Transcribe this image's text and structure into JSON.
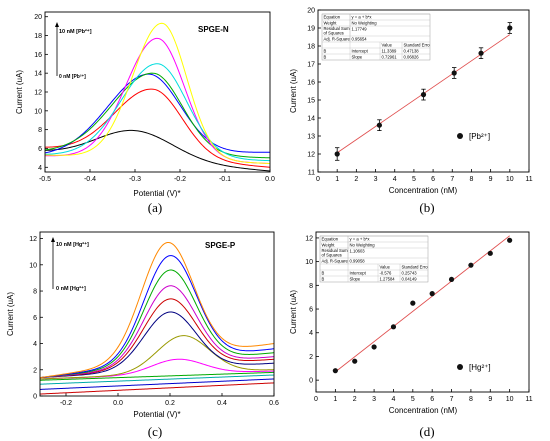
{
  "panels": [
    {
      "letter": "(a)",
      "xlabel": "Potential (V)*",
      "ylabel": "Current (uA)",
      "inner_label": "SPGE-N",
      "conc_top": "10 nM [Pb²⁺]",
      "conc_bottom": "0 nM [Pb²⁺]"
    },
    {
      "letter": "(b)",
      "xlabel": "Concentration (nM)",
      "ylabel": "Current (uA)",
      "legend": "[Pb²⁺]",
      "table": {
        "rows": [
          [
            "Equation",
            "y = a + b*x",
            "",
            ""
          ],
          [
            "Weight",
            "No Weighting",
            "",
            ""
          ],
          [
            "Residual Sum of Squares",
            "1.17749",
            "",
            ""
          ],
          [
            "Adj. R-Square",
            "0.95654",
            "",
            ""
          ],
          [
            "",
            "",
            "Value",
            "Standard Erro"
          ],
          [
            "B",
            "Intercept",
            "11.3389",
            "0.47138"
          ],
          [
            "B",
            "Slope",
            "0.72961",
            "0.06826"
          ]
        ]
      }
    },
    {
      "letter": "(c)",
      "xlabel": "Potential (V)*",
      "ylabel": "Current (uA)",
      "inner_label": "SPGE-P",
      "conc_top": "10 nM [Hg²⁺]",
      "conc_bottom": "0 nM [Hg²⁺]"
    },
    {
      "letter": "(d)",
      "xlabel": "Concentration (nM)",
      "ylabel": "Current (uA)",
      "legend": "[Hg²⁺]",
      "table": {
        "rows": [
          [
            "Equation",
            "y = a + b*x",
            "",
            ""
          ],
          [
            "Weight",
            "No Weighting",
            "",
            ""
          ],
          [
            "Residual Sum of Squares",
            "1.10603",
            "",
            ""
          ],
          [
            "Adj. R-Square",
            "0.99058",
            "",
            ""
          ],
          [
            "",
            "",
            "Value",
            "Standard Erro"
          ],
          [
            "B",
            "Intercept",
            "-0.576",
            "0.25743"
          ],
          [
            "B",
            "Slope",
            "1.27584",
            "0.04149"
          ]
        ]
      }
    }
  ],
  "chart_data": [
    {
      "type": "line",
      "xlim": [
        -0.5,
        0.0
      ],
      "ylim": [
        3.5,
        20.5
      ],
      "xticks": [
        -0.5,
        -0.4,
        -0.3,
        -0.2,
        -0.1,
        0.0
      ],
      "xtick_labels": [
        "-0.5",
        "-0.4",
        "-0.3",
        "-0.2",
        "-0.1",
        "0.0"
      ],
      "yticks": [
        4,
        6,
        8,
        10,
        12,
        14,
        16,
        18,
        20
      ],
      "ytick_labels": [
        "4",
        "6",
        "8",
        "10",
        "12",
        "14",
        "16",
        "18",
        "20"
      ],
      "grid": false,
      "series": [
        {
          "color": "#000000",
          "base0": 5.6,
          "base1": 3.6,
          "peak_x": -0.3,
          "peak_y": 7.9,
          "sl": 0.085,
          "sr": 0.085
        },
        {
          "color": "#ff0000",
          "base0": 6.0,
          "base1": 4.0,
          "peak_x": -0.26,
          "peak_y": 12.3,
          "sl": 0.085,
          "sr": 0.065
        },
        {
          "color": "#0000ff",
          "base0": 5.2,
          "base1": 5.6,
          "peak_x": -0.27,
          "peak_y": 13.9,
          "sl": 0.09,
          "sr": 0.07
        },
        {
          "color": "#00aa00",
          "base0": 5.6,
          "base1": 5.0,
          "peak_x": -0.26,
          "peak_y": 14.0,
          "sl": 0.09,
          "sr": 0.065
        },
        {
          "color": "#ff00ff",
          "base0": 5.2,
          "base1": 4.4,
          "peak_x": -0.25,
          "peak_y": 17.7,
          "sl": 0.07,
          "sr": 0.06
        },
        {
          "color": "#00dddd",
          "base0": 5.3,
          "base1": 4.7,
          "peak_x": -0.25,
          "peak_y": 15.0,
          "sl": 0.08,
          "sr": 0.065
        },
        {
          "color": "#ffff00",
          "base0": 5.3,
          "base1": 4.4,
          "peak_x": -0.24,
          "peak_y": 19.3,
          "sl": 0.065,
          "sr": 0.055
        }
      ]
    },
    {
      "type": "scatter",
      "xlim": [
        0,
        11
      ],
      "ylim": [
        11,
        20
      ],
      "xticks": [
        0,
        1,
        2,
        3,
        4,
        5,
        6,
        7,
        8,
        9,
        10,
        11
      ],
      "xtick_labels": [
        "0",
        "1",
        "2",
        "3",
        "4",
        "5",
        "6",
        "7",
        "8",
        "9",
        "10",
        "11"
      ],
      "yticks": [
        11,
        12,
        13,
        14,
        15,
        16,
        17,
        18,
        19,
        20
      ],
      "ytick_labels": [
        "11",
        "12",
        "13",
        "14",
        "15",
        "16",
        "17",
        "18",
        "19",
        "20"
      ],
      "grid": false,
      "x": [
        1,
        3.2,
        5.5,
        7.1,
        8.5,
        10
      ],
      "y": [
        12.0,
        13.6,
        15.3,
        16.5,
        17.6,
        19.0
      ],
      "err": [
        0.35,
        0.3,
        0.3,
        0.3,
        0.3,
        0.3
      ],
      "fit": {
        "intercept": 11.3389,
        "slope": 0.72961,
        "x_range": [
          1,
          10
        ]
      }
    },
    {
      "type": "line",
      "xlim": [
        -0.3,
        0.6
      ],
      "ylim": [
        0,
        12.5
      ],
      "xticks": [
        -0.2,
        0.0,
        0.2,
        0.4,
        0.6
      ],
      "xtick_labels": [
        "-0.2",
        "0.0",
        "0.2",
        "0.4",
        "0.6"
      ],
      "yticks": [
        0,
        2,
        4,
        6,
        8,
        10,
        12
      ],
      "ytick_labels": [
        "0",
        "2",
        "4",
        "6",
        "8",
        "10",
        "12"
      ],
      "grid": false,
      "series": [
        {
          "color": "#cc0000",
          "base0": 0.15,
          "base1": 1.0,
          "peak_x": 0.2,
          "peak_y": 0.0,
          "sl": 0.1,
          "sr": 0.1
        },
        {
          "color": "#0000cc",
          "base0": 0.5,
          "base1": 1.3,
          "peak_x": 0.2,
          "peak_y": 0.0,
          "sl": 0.1,
          "sr": 0.1
        },
        {
          "color": "#00aaaa",
          "base0": 0.9,
          "base1": 1.6,
          "peak_x": 0.15,
          "peak_y": 0.0,
          "sl": 0.1,
          "sr": 0.1
        },
        {
          "color": "#00aa00",
          "base0": 1.2,
          "base1": 1.8,
          "peak_x": 0.15,
          "peak_y": 0.0,
          "sl": 0.1,
          "sr": 0.1
        },
        {
          "color": "#ff00ff",
          "base0": 1.3,
          "base1": 1.9,
          "peak_x": 0.23,
          "peak_y": 2.8,
          "sl": 0.1,
          "sr": 0.1
        },
        {
          "color": "#999900",
          "base0": 1.3,
          "base1": 2.0,
          "peak_x": 0.25,
          "peak_y": 4.6,
          "sl": 0.1,
          "sr": 0.1
        },
        {
          "color": "#000080",
          "base0": 1.4,
          "base1": 2.5,
          "peak_x": 0.2,
          "peak_y": 6.4,
          "sl": 0.1,
          "sr": 0.1
        },
        {
          "color": "#cc0000",
          "base0": 1.4,
          "base1": 2.8,
          "peak_x": 0.2,
          "peak_y": 7.4,
          "sl": 0.1,
          "sr": 0.1
        },
        {
          "color": "#cc00cc",
          "base0": 1.4,
          "base1": 3.0,
          "peak_x": 0.2,
          "peak_y": 8.4,
          "sl": 0.1,
          "sr": 0.1
        },
        {
          "color": "#00aa00",
          "base0": 1.4,
          "base1": 3.3,
          "peak_x": 0.2,
          "peak_y": 9.6,
          "sl": 0.1,
          "sr": 0.1
        },
        {
          "color": "#0000ff",
          "base0": 1.4,
          "base1": 3.6,
          "peak_x": 0.2,
          "peak_y": 10.7,
          "sl": 0.1,
          "sr": 0.1
        },
        {
          "color": "#ff8800",
          "base0": 1.4,
          "base1": 4.0,
          "peak_x": 0.19,
          "peak_y": 11.7,
          "sl": 0.1,
          "sr": 0.1
        }
      ]
    },
    {
      "type": "scatter",
      "xlim": [
        0,
        11
      ],
      "ylim": [
        -1,
        12.5
      ],
      "xticks": [
        0,
        1,
        2,
        3,
        4,
        5,
        6,
        7,
        8,
        9,
        10,
        11
      ],
      "xtick_labels": [
        "0",
        "1",
        "2",
        "3",
        "4",
        "5",
        "6",
        "7",
        "8",
        "9",
        "10",
        "11"
      ],
      "yticks": [
        0,
        2,
        4,
        6,
        8,
        10,
        12
      ],
      "ytick_labels": [
        "0",
        "2",
        "4",
        "6",
        "8",
        "10",
        "12"
      ],
      "grid": false,
      "x": [
        1,
        2,
        3,
        4,
        5,
        6,
        7,
        8,
        9,
        10
      ],
      "y": [
        0.8,
        1.6,
        2.8,
        4.5,
        6.5,
        7.3,
        8.5,
        9.7,
        10.7,
        11.8
      ],
      "err": [
        0,
        0,
        0,
        0,
        0,
        0,
        0,
        0,
        0,
        0
      ],
      "fit": {
        "intercept": -0.576,
        "slope": 1.27584,
        "x_range": [
          1,
          10
        ]
      }
    }
  ]
}
